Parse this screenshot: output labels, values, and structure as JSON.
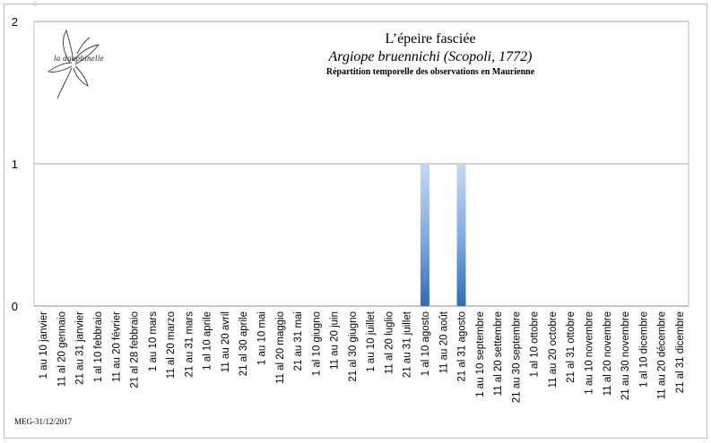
{
  "chart_data": {
    "type": "bar",
    "title": "L’épeire fasciée",
    "subtitle": "Argiope bruennichi (Scopoli, 1772)",
    "caption": "Répartition temporelle des observations en Maurienne",
    "ylim": [
      0,
      2
    ],
    "yticks": [
      "0",
      "1",
      "2"
    ],
    "grid": true,
    "categories": [
      "1 au 10 janvier",
      "11 al 20 gennaio",
      "21 au 31 janvier",
      "1 al 10 febbraio",
      "11 au 20 février",
      "21 al 28 febbraio",
      "1 au 10 mars",
      "11 al 20 marzo",
      "21 au 31 mars",
      "1 al 10 aprile",
      "11 au 20 avril",
      "21 al 30 aprile",
      "1 au 10 mai",
      "11 al 20 maggio",
      "21 au 31 mai",
      "1 al 10 giugno",
      "11 au 20 juin",
      "21 al 30 giugno",
      "1 au 10 juillet",
      "11 al 20 luglio",
      "21 au 31 juillet",
      "1 al 10 agosto",
      "11 au 20 août",
      "21 al 31 agosto",
      "1 au 10 septembre",
      "11 al 20 settembre",
      "21 au 30 septembre",
      "1 al 10 ottobre",
      "11 au 20 octobre",
      "21 al 31 ottobre",
      "1 au 10 novembre",
      "11 al 20 novembre",
      "21 au 30 novembre",
      "1 al 10 dicembre",
      "11 au 20 décembre",
      "21 al 31 dicembre"
    ],
    "values": [
      0,
      0,
      0,
      0,
      0,
      0,
      0,
      0,
      0,
      0,
      0,
      0,
      0,
      0,
      0,
      0,
      0,
      0,
      0,
      0,
      0,
      1,
      0,
      1,
      0,
      0,
      0,
      0,
      0,
      0,
      0,
      0,
      0,
      0,
      0,
      0
    ],
    "bar_color": "#4a86cf"
  },
  "logo_text": "la dauphinelle",
  "footer": "MEG-31/12/2017",
  "corner_mark": "©"
}
